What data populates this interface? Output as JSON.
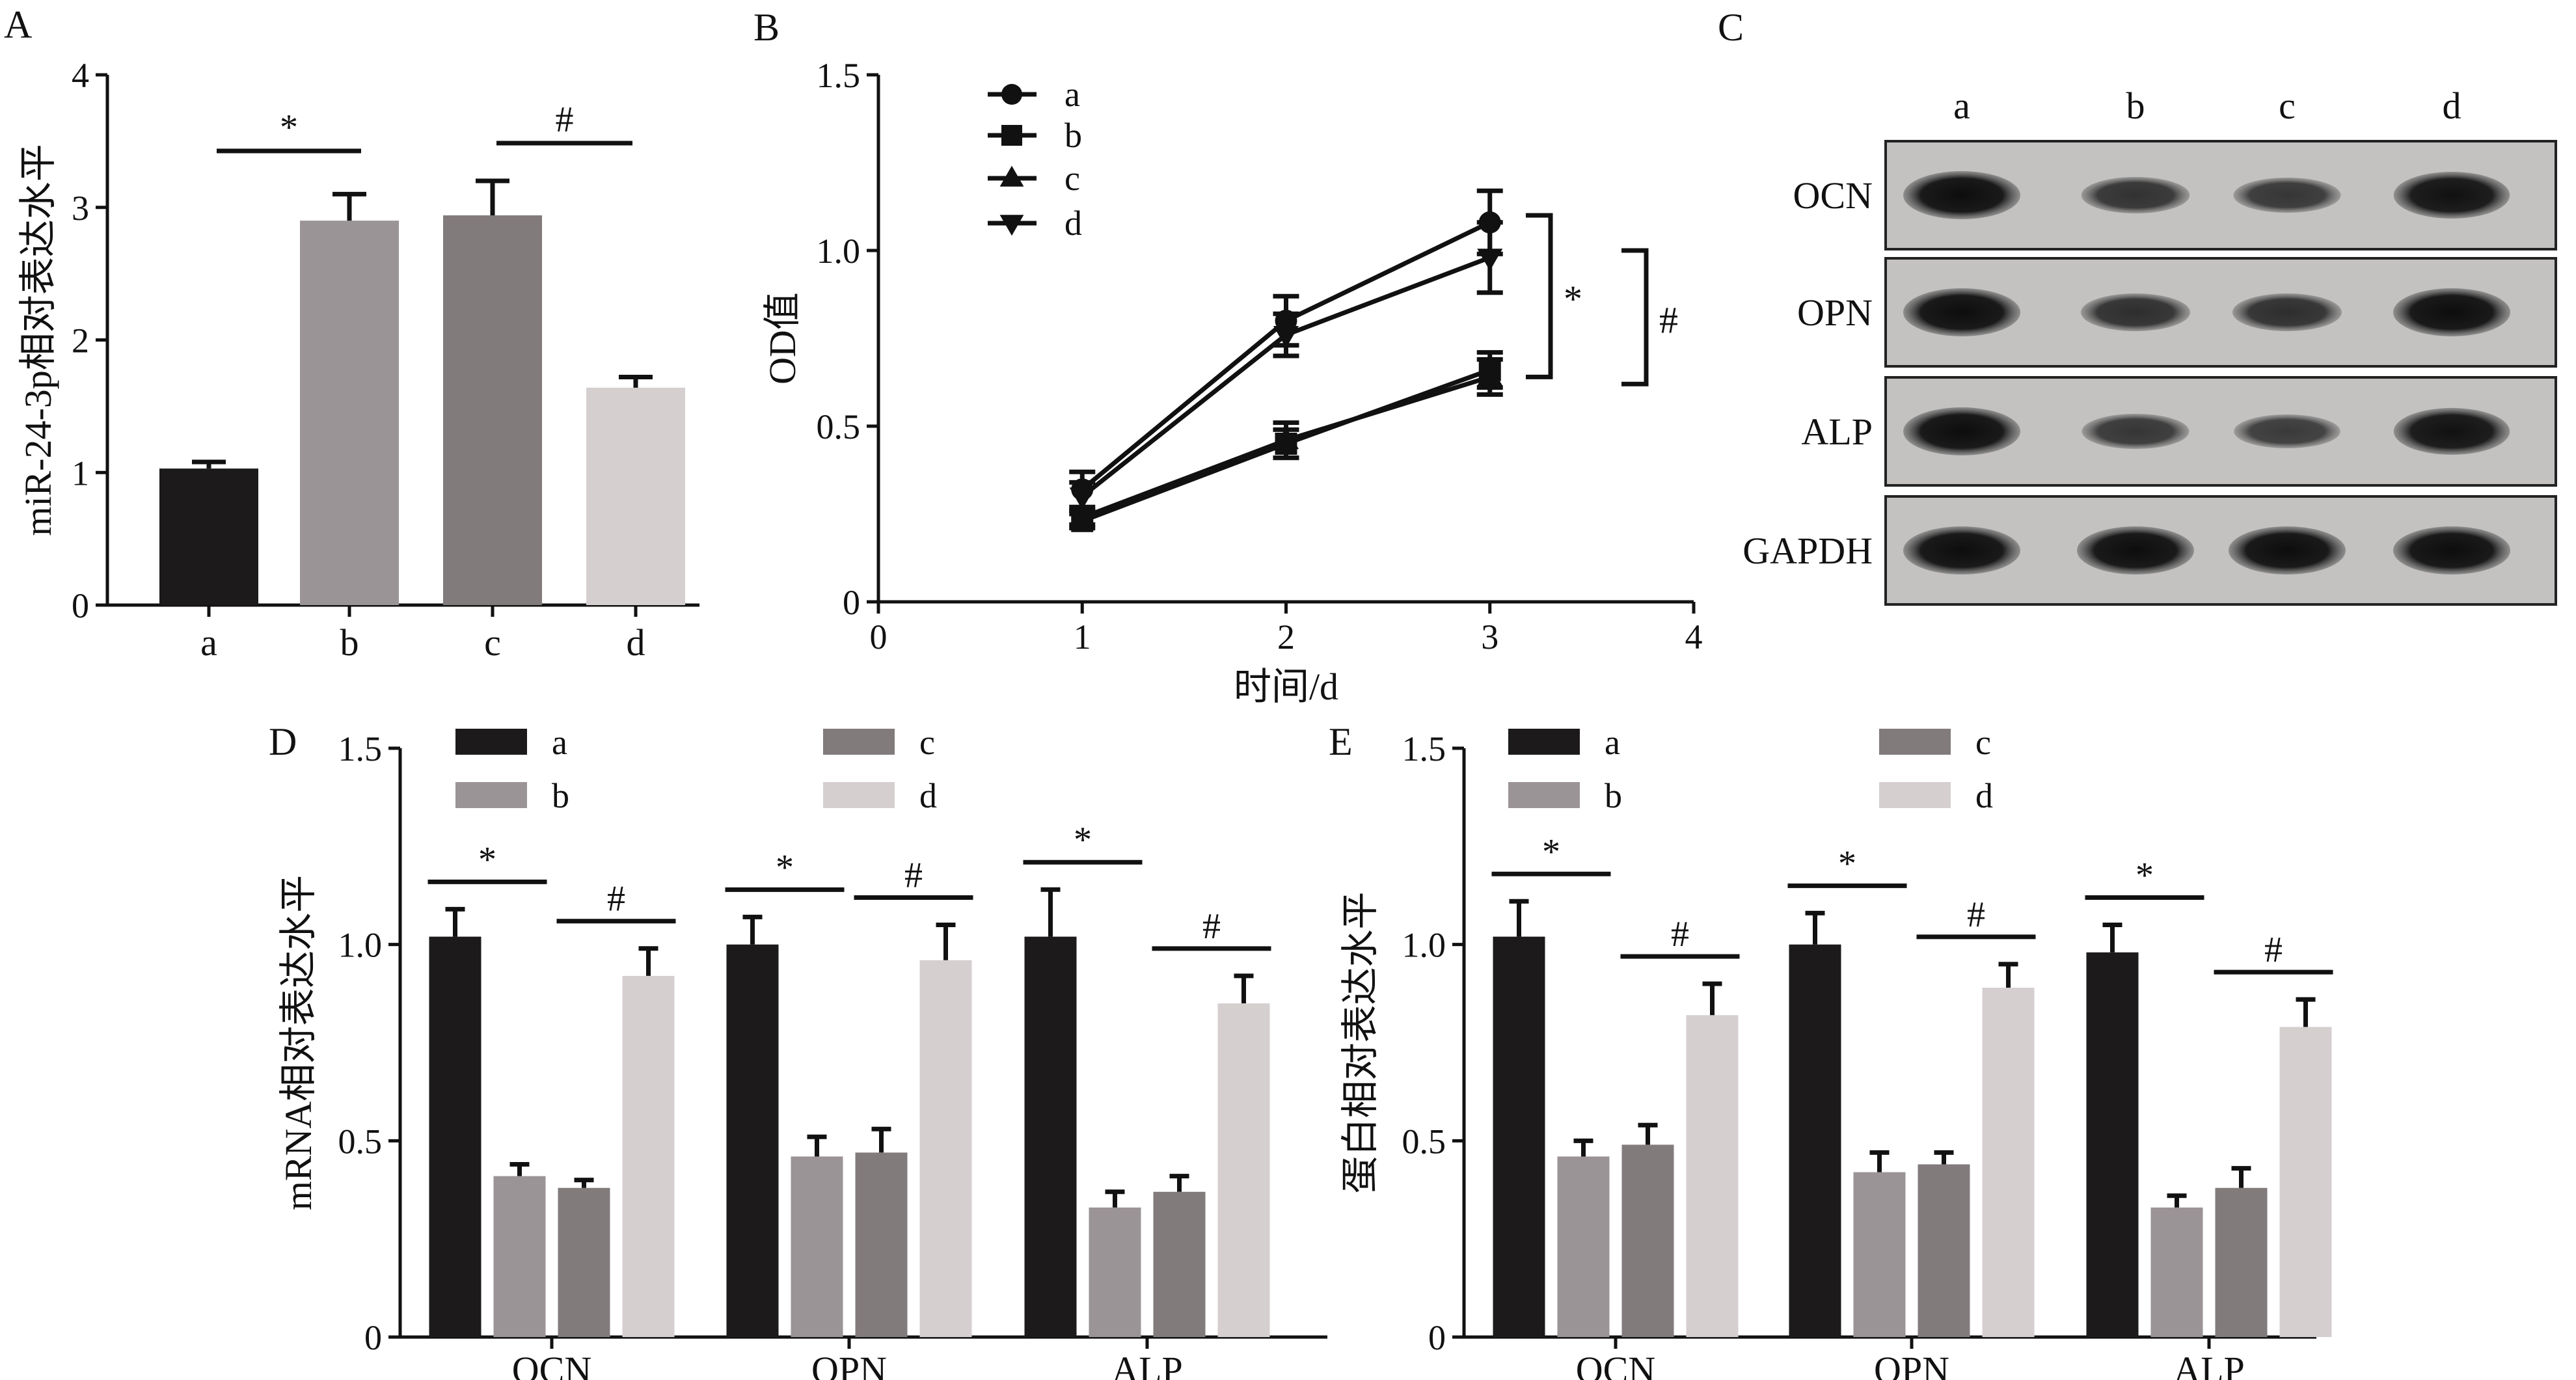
{
  "panel_labels": {
    "A": "A",
    "B": "B",
    "C": "C",
    "D": "D",
    "E": "E"
  },
  "colors": {
    "a": "#1c1a1a",
    "b": "#9b9496",
    "c": "#827b7c",
    "d": "#d5cfd0",
    "line": "#111111"
  },
  "chart_data": [
    {
      "panel": "A",
      "type": "bar",
      "ylabel": "miR-24-3p相对表达水平",
      "ylim": [
        0,
        4
      ],
      "yticks": [
        0,
        1,
        2,
        3,
        4
      ],
      "categories": [
        "a",
        "b",
        "c",
        "d"
      ],
      "values": [
        1.03,
        2.9,
        2.94,
        1.64
      ],
      "errors": [
        0.05,
        0.2,
        0.26,
        0.08
      ],
      "significance": [
        {
          "label": "*",
          "from": "a",
          "to": "b"
        },
        {
          "label": "#",
          "from": "c",
          "to": "d"
        }
      ]
    },
    {
      "panel": "B",
      "type": "line",
      "ylabel": "OD值",
      "xlabel": "时间/d",
      "xlim": [
        0,
        4
      ],
      "ylim": [
        0,
        1.5
      ],
      "xticks": [
        0,
        1,
        2,
        3,
        4
      ],
      "yticks": [
        "0",
        "0.5",
        "1.0",
        "1.5"
      ],
      "x": [
        1,
        2,
        3
      ],
      "series": [
        {
          "name": "a",
          "marker": "circle",
          "values": [
            0.32,
            0.8,
            1.08
          ],
          "errors": [
            0.05,
            0.07,
            0.09
          ]
        },
        {
          "name": "b",
          "marker": "square",
          "values": [
            0.23,
            0.45,
            0.66
          ],
          "errors": [
            0.02,
            0.04,
            0.05
          ]
        },
        {
          "name": "c",
          "marker": "triangle-up",
          "values": [
            0.24,
            0.46,
            0.64
          ],
          "errors": [
            0.02,
            0.05,
            0.05
          ]
        },
        {
          "name": "d",
          "marker": "triangle-down",
          "values": [
            0.3,
            0.76,
            0.98
          ],
          "errors": [
            0.04,
            0.06,
            0.1
          ]
        }
      ],
      "significance": [
        {
          "label": "*",
          "y_top": 1.1,
          "y_bottom": 0.64
        },
        {
          "label": "#",
          "y_top": 1.0,
          "y_bottom": 0.62
        }
      ]
    },
    {
      "panel": "C",
      "type": "western-blot",
      "lanes": [
        "a",
        "b",
        "c",
        "d"
      ],
      "proteins": [
        "OCN",
        "OPN",
        "ALP",
        "GAPDH"
      ],
      "band_intensity": [
        [
          1.0,
          0.55,
          0.5,
          0.95
        ],
        [
          1.0,
          0.6,
          0.6,
          1.0
        ],
        [
          1.0,
          0.5,
          0.45,
          0.95
        ],
        [
          1.0,
          1.0,
          1.0,
          1.0
        ]
      ]
    },
    {
      "panel": "D",
      "type": "bar",
      "ylabel": "mRNA相对表达水平",
      "ylim": [
        0,
        1.5
      ],
      "yticks": [
        "0",
        "0.5",
        "1.0",
        "1.5"
      ],
      "categories": [
        "OCN",
        "OPN",
        "ALP"
      ],
      "series": [
        {
          "name": "a",
          "values": [
            1.02,
            1.0,
            1.02
          ],
          "errors": [
            0.07,
            0.07,
            0.12
          ]
        },
        {
          "name": "b",
          "values": [
            0.41,
            0.46,
            0.33
          ],
          "errors": [
            0.03,
            0.05,
            0.04
          ]
        },
        {
          "name": "c",
          "values": [
            0.38,
            0.47,
            0.37
          ],
          "errors": [
            0.02,
            0.06,
            0.04
          ]
        },
        {
          "name": "d",
          "values": [
            0.92,
            0.96,
            0.85
          ],
          "errors": [
            0.07,
            0.09,
            0.07
          ]
        }
      ],
      "significance_labels": [
        "*",
        "#"
      ]
    },
    {
      "panel": "E",
      "type": "bar",
      "ylabel": "蛋白相对表达水平",
      "ylim": [
        0,
        1.5
      ],
      "yticks": [
        "0",
        "0.5",
        "1.0",
        "1.5"
      ],
      "categories": [
        "OCN",
        "OPN",
        "ALP"
      ],
      "series": [
        {
          "name": "a",
          "values": [
            1.02,
            1.0,
            0.98
          ],
          "errors": [
            0.09,
            0.08,
            0.07
          ]
        },
        {
          "name": "b",
          "values": [
            0.46,
            0.42,
            0.33
          ],
          "errors": [
            0.04,
            0.05,
            0.03
          ]
        },
        {
          "name": "c",
          "values": [
            0.49,
            0.44,
            0.38
          ],
          "errors": [
            0.05,
            0.03,
            0.05
          ]
        },
        {
          "name": "d",
          "values": [
            0.82,
            0.89,
            0.79
          ],
          "errors": [
            0.08,
            0.06,
            0.07
          ]
        }
      ],
      "significance_labels": [
        "*",
        "#"
      ]
    }
  ]
}
